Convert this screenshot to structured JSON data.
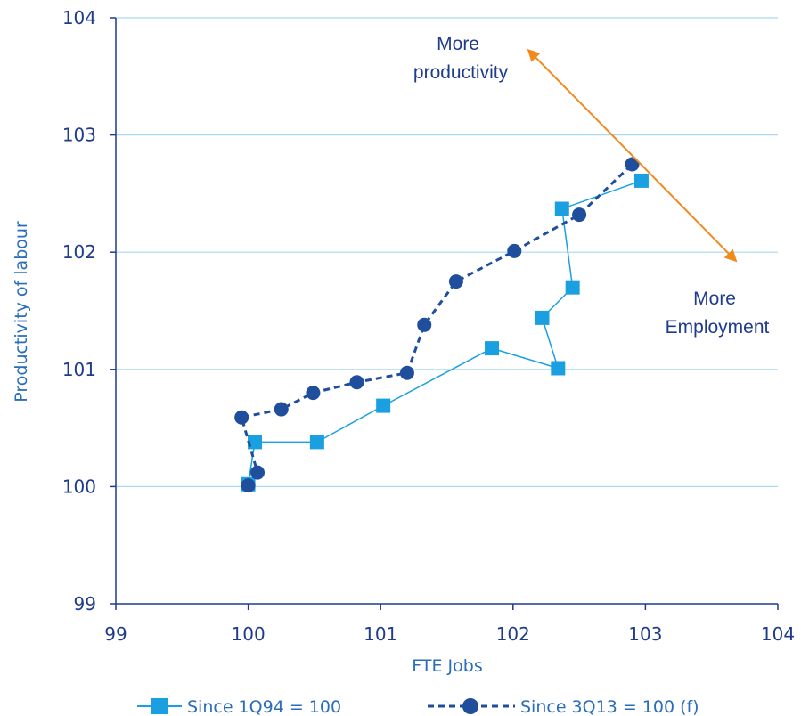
{
  "chart_data": {
    "type": "scatter",
    "xlabel": "FTE Jobs",
    "ylabel": "Productivity  of labour",
    "xlim": [
      99,
      104
    ],
    "ylim": [
      99,
      104
    ],
    "x_ticks": [
      "99",
      "100",
      "101",
      "102",
      "103",
      "104"
    ],
    "y_ticks": [
      "99",
      "100",
      "101",
      "102",
      "103",
      "104"
    ],
    "grid": "horizontal",
    "legend": "bottom",
    "series": [
      {
        "name": "Since 1Q94 = 100",
        "color": "#1aa0e0",
        "line": "solid",
        "marker": "square",
        "x": [
          100.0,
          100.05,
          100.52,
          101.02,
          101.84,
          102.34,
          102.22,
          102.45,
          102.37,
          102.97
        ],
        "y": [
          100.02,
          100.38,
          100.38,
          100.69,
          101.18,
          101.01,
          101.44,
          101.7,
          102.37,
          102.61
        ]
      },
      {
        "name": "Since 3Q13 = 100 (f)",
        "color": "#1f4e9c",
        "line": "dashed",
        "marker": "circle",
        "x": [
          100.0,
          100.07,
          99.95,
          100.25,
          100.49,
          100.82,
          101.2,
          101.33,
          101.57,
          102.01,
          102.5,
          102.9
        ],
        "y": [
          100.01,
          100.12,
          100.59,
          100.66,
          100.8,
          100.89,
          100.97,
          101.38,
          101.75,
          102.01,
          102.32,
          102.75
        ]
      }
    ],
    "annotations": [
      {
        "lines": [
          "More",
          "productivity"
        ]
      },
      {
        "lines": [
          "More",
          "Employment"
        ]
      }
    ],
    "arrow": {
      "color": "#f08a1c",
      "from": [
        102.12,
        103.72
      ],
      "to": [
        103.68,
        101.93
      ]
    }
  }
}
